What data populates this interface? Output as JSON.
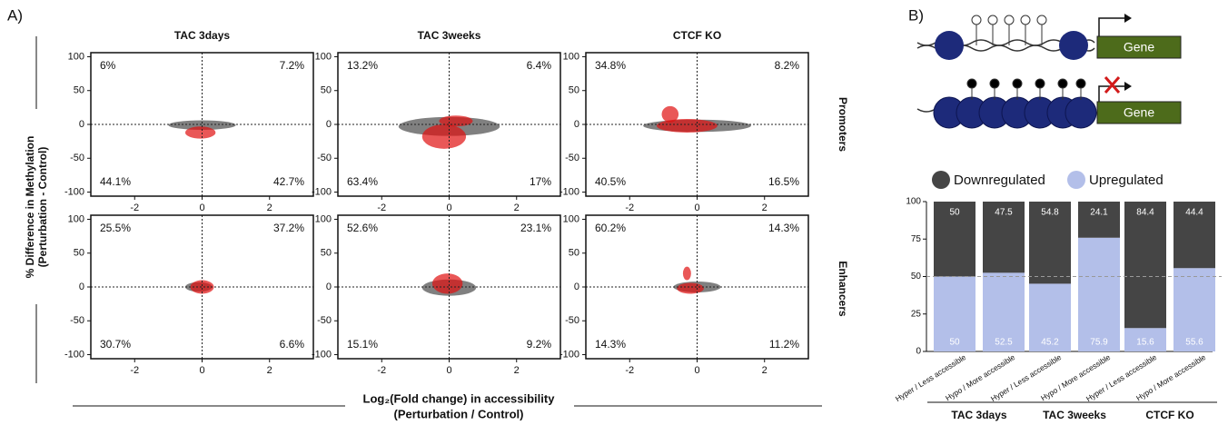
{
  "figure": {
    "panel_a_label": "A)",
    "panel_b_label": "B)",
    "column_titles": [
      "TAC 3days",
      "TAC 3weeks",
      "CTCF KO"
    ],
    "row_labels": [
      "Promoters",
      "Enhancers"
    ],
    "y_label": [
      "% Difference in Methylation",
      "(Perturbation - Control)"
    ],
    "x_label": [
      "Log₂(Fold change) in accessibility",
      "(Perturbation / Control)"
    ],
    "gene_labels": [
      "Gene",
      "Gene"
    ]
  },
  "chart_data": [
    {
      "type": "scatter",
      "quadrant_labels": [
        "6%",
        "7.2%",
        "44.1%",
        "42.7%"
      ],
      "xlim": [
        -3.3,
        3.3
      ],
      "xticks": [
        -2,
        0,
        2
      ],
      "ylim": [
        -106,
        106
      ],
      "yticks": [
        -100,
        -50,
        0,
        50,
        100
      ],
      "reference_x": 0,
      "reference_y": 0
    },
    {
      "type": "scatter",
      "quadrant_labels": [
        "13.2%",
        "6.4%",
        "63.4%",
        "17%"
      ],
      "xlim": [
        -3.3,
        3.3
      ],
      "xticks": [
        -2,
        0,
        2
      ],
      "ylim": [
        -106,
        106
      ],
      "yticks": [
        -100,
        -50,
        0,
        50,
        100
      ],
      "reference_x": 0,
      "reference_y": 0
    },
    {
      "type": "scatter",
      "quadrant_labels": [
        "34.8%",
        "8.2%",
        "40.5%",
        "16.5%"
      ],
      "xlim": [
        -3.3,
        3.3
      ],
      "xticks": [
        -2,
        0,
        2
      ],
      "ylim": [
        -106,
        106
      ],
      "yticks": [
        -100,
        -50,
        0,
        50,
        100
      ],
      "reference_x": 0,
      "reference_y": 0
    },
    {
      "type": "scatter",
      "quadrant_labels": [
        "25.5%",
        "37.2%",
        "30.7%",
        "6.6%"
      ],
      "xlim": [
        -3.3,
        3.3
      ],
      "xticks": [
        -2,
        0,
        2
      ],
      "ylim": [
        -106,
        106
      ],
      "yticks": [
        -100,
        -50,
        0,
        50,
        100
      ],
      "reference_x": 0,
      "reference_y": 0
    },
    {
      "type": "scatter",
      "quadrant_labels": [
        "52.6%",
        "23.1%",
        "15.1%",
        "9.2%"
      ],
      "xlim": [
        -3.3,
        3.3
      ],
      "xticks": [
        -2,
        0,
        2
      ],
      "ylim": [
        -106,
        106
      ],
      "yticks": [
        -100,
        -50,
        0,
        50,
        100
      ],
      "reference_x": 0,
      "reference_y": 0
    },
    {
      "type": "scatter",
      "quadrant_labels": [
        "60.2%",
        "14.3%",
        "14.3%",
        "11.2%"
      ],
      "xlim": [
        -3.3,
        3.3
      ],
      "xticks": [
        -2,
        0,
        2
      ],
      "ylim": [
        -106,
        106
      ],
      "yticks": [
        -100,
        -50,
        0,
        50,
        100
      ],
      "reference_x": 0,
      "reference_y": 0
    },
    {
      "type": "stacked_bar",
      "categories": [
        "Hyper / Less accessible",
        "Hypo / More accessible",
        "Hyper / Less accessible",
        "Hypo / More accessible",
        "Hyper / Less accessible",
        "Hypo / More accessible"
      ],
      "groups": [
        "TAC 3days",
        "TAC 3weeks",
        "CTCF KO"
      ],
      "series": [
        {
          "name": "Upregulated",
          "color": "#b3bfe9",
          "values": [
            50,
            52.5,
            45.2,
            75.9,
            15.6,
            55.6
          ]
        },
        {
          "name": "Downregulated",
          "color": "#454545",
          "values": [
            50,
            47.5,
            54.8,
            24.1,
            84.4,
            44.4
          ]
        }
      ],
      "ylim": [
        0,
        100
      ],
      "yticks": [
        0,
        25,
        50,
        75,
        100
      ],
      "reference_y": 50
    }
  ]
}
